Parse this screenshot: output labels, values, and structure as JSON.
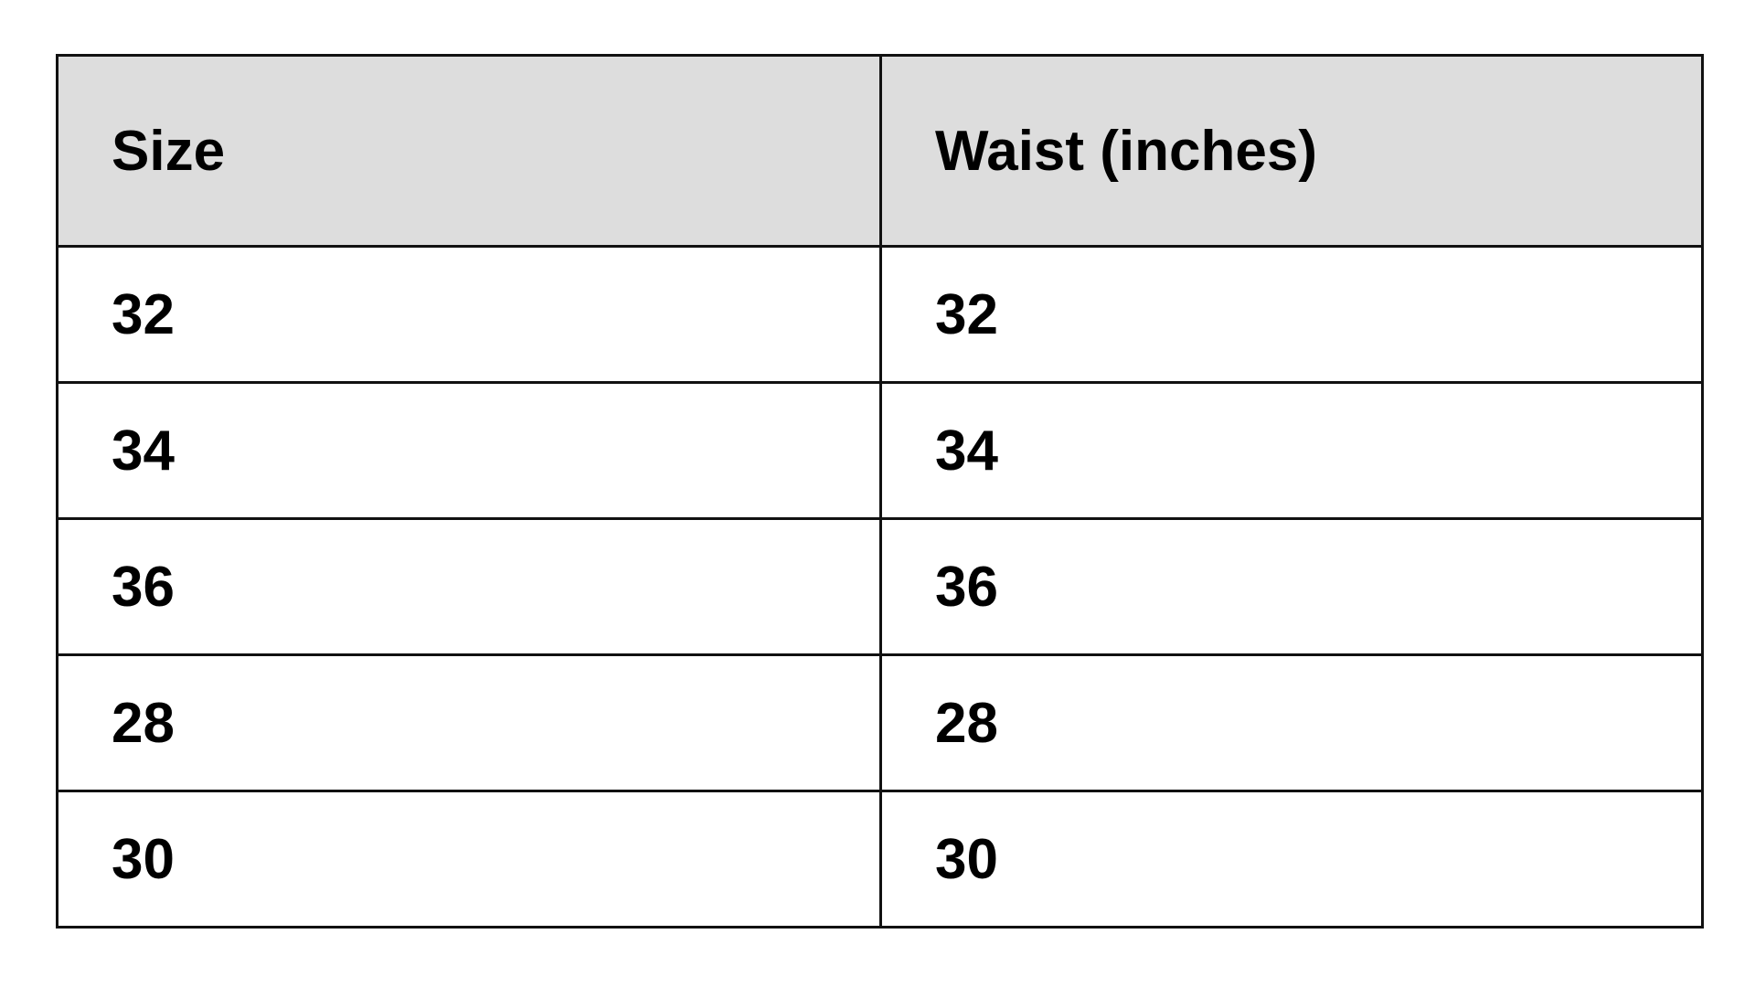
{
  "table": {
    "headers": [
      "Size",
      "Waist (inches)"
    ],
    "rows": [
      [
        "32",
        "32"
      ],
      [
        "34",
        "34"
      ],
      [
        "36",
        "36"
      ],
      [
        "28",
        "28"
      ],
      [
        "30",
        "30"
      ]
    ],
    "header_background": "#dddddd"
  }
}
